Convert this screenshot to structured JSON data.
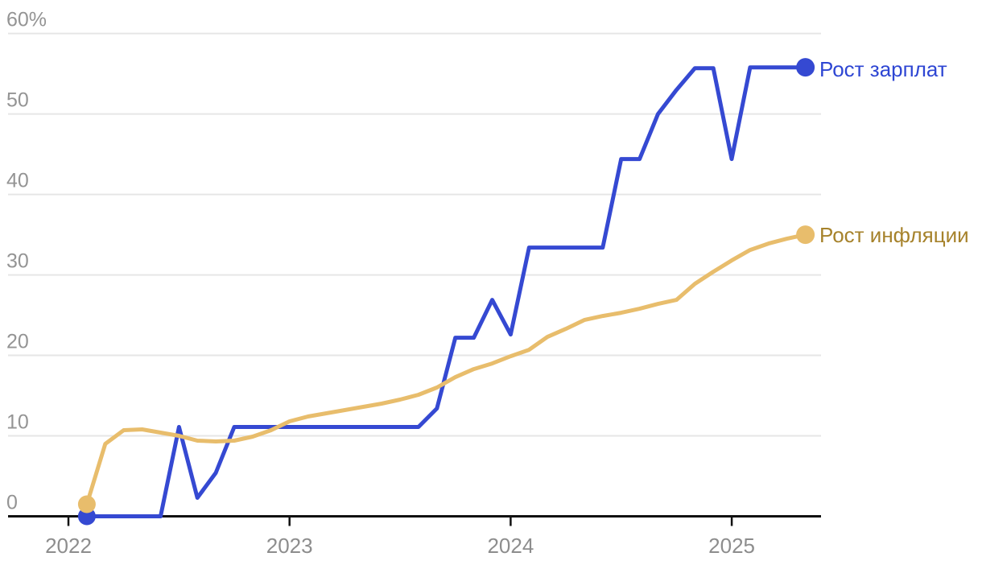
{
  "page": {
    "background": "#ffffff"
  },
  "chart_data": {
    "type": "line",
    "title": "",
    "x_unit": "month",
    "x": [
      "2022-02",
      "2022-03",
      "2022-04",
      "2022-05",
      "2022-06",
      "2022-07",
      "2022-08",
      "2022-09",
      "2022-10",
      "2022-11",
      "2022-12",
      "2023-01",
      "2023-02",
      "2023-03",
      "2023-04",
      "2023-05",
      "2023-06",
      "2023-07",
      "2023-08",
      "2023-09",
      "2023-10",
      "2023-11",
      "2023-12",
      "2024-01",
      "2024-02",
      "2024-03",
      "2024-04",
      "2024-05",
      "2024-06",
      "2024-07",
      "2024-08",
      "2024-09",
      "2024-10",
      "2024-11",
      "2024-12",
      "2025-01",
      "2025-02",
      "2025-03",
      "2025-04",
      "2025-05"
    ],
    "x_axis": {
      "year_labels": [
        "2022",
        "2023",
        "2024",
        "2025"
      ]
    },
    "y_axis": {
      "range": [
        0,
        60
      ],
      "ticks": [
        {
          "value": 0,
          "label": "0"
        },
        {
          "value": 10,
          "label": "10"
        },
        {
          "value": 20,
          "label": "20"
        },
        {
          "value": 30,
          "label": "30"
        },
        {
          "value": 40,
          "label": "40"
        },
        {
          "value": 50,
          "label": "50"
        },
        {
          "value": 60,
          "label": "60%"
        }
      ]
    },
    "grid": true,
    "legend_position": "line-end",
    "colors": {
      "axis": "#111111",
      "grid": "#e6e6e6",
      "tick_text": "#909090"
    },
    "series": [
      {
        "id": "wages",
        "name": "Рост зарплат",
        "color": "#3549d2",
        "label_color": "#2e46d3",
        "marker": "circle",
        "values": [
          0,
          0,
          0,
          0,
          0,
          11.1,
          2.3,
          5.4,
          11.1,
          11.1,
          11.1,
          11.1,
          11.1,
          11.1,
          11.1,
          11.1,
          11.1,
          11.1,
          11.1,
          13.4,
          22.2,
          22.2,
          26.9,
          22.6,
          33.4,
          33.4,
          33.4,
          33.4,
          33.4,
          44.4,
          44.4,
          50,
          53,
          55.7,
          55.7,
          44.4,
          55.8,
          55.8,
          55.8,
          55.8
        ]
      },
      {
        "id": "inflation",
        "name": "Рост инфляции",
        "color": "#e8bd6c",
        "label_color": "#a6822b",
        "marker": "circle",
        "values": [
          1.5,
          9,
          10.7,
          10.8,
          10.4,
          10,
          9.4,
          9.3,
          9.4,
          9.9,
          10.7,
          11.8,
          12.4,
          12.8,
          13.2,
          13.6,
          14,
          14.5,
          15.1,
          16,
          17.3,
          18.3,
          19,
          19.9,
          20.7,
          22.3,
          23.3,
          24.4,
          24.9,
          25.3,
          25.8,
          26.4,
          26.9,
          28.9,
          30.4,
          31.8,
          33.1,
          33.9,
          34.5,
          35
        ]
      }
    ]
  }
}
